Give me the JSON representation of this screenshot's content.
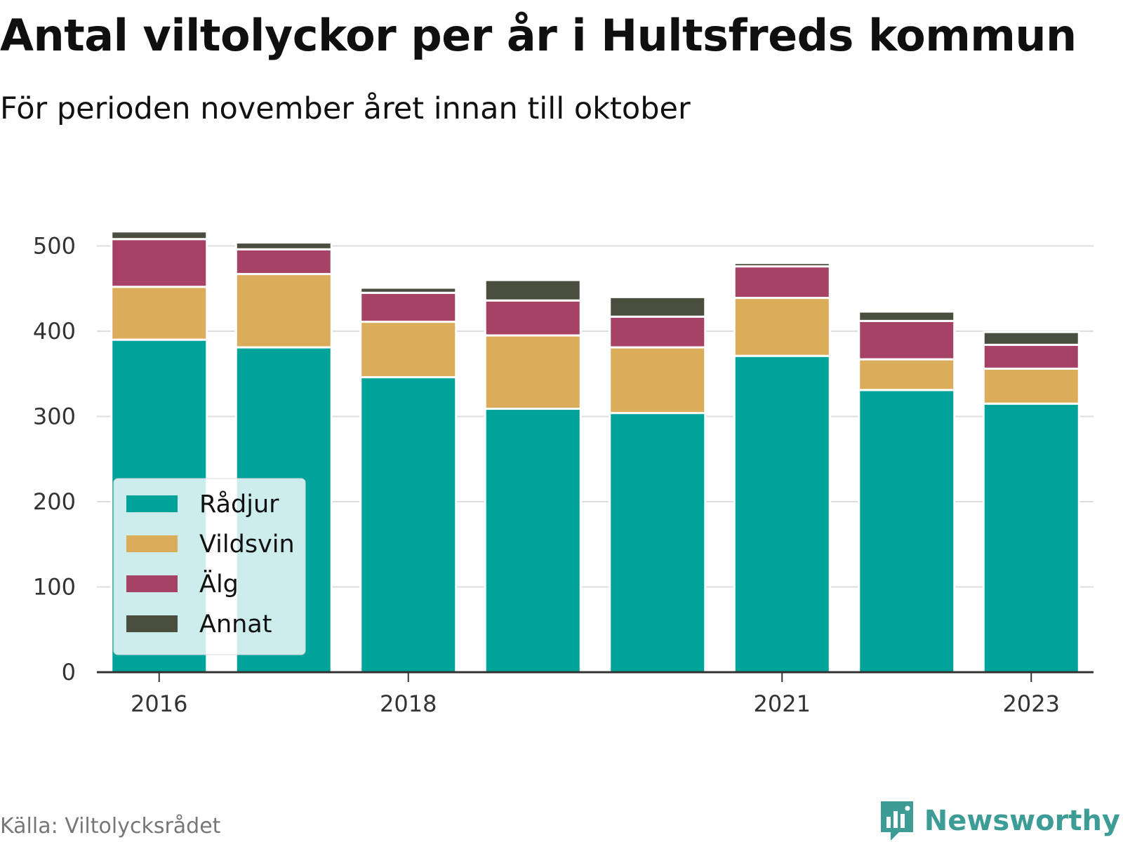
{
  "header": {
    "title": "Antal viltolyckor per år i Hultsfreds kommun",
    "subtitle": "För perioden november året innan till oktober"
  },
  "footer": {
    "source": "Källa: Viltolycksrådet",
    "brand": "Newsworthy",
    "brand_icon": "bar-chart-speech-bubble-icon"
  },
  "chart_data": {
    "type": "bar",
    "stacked": true,
    "categories": [
      "2016",
      "2017",
      "2018",
      "2019",
      "2020",
      "2021",
      "2022",
      "2023"
    ],
    "x_tick_labels": [
      "2016",
      "",
      "2018",
      "",
      "",
      "2021",
      "",
      "2023"
    ],
    "series": [
      {
        "name": "Rådjur",
        "color": "#00a39a",
        "values": [
          390,
          381,
          346,
          309,
          304,
          371,
          331,
          315
        ]
      },
      {
        "name": "Vildsvin",
        "color": "#dbac5a",
        "values": [
          62,
          86,
          65,
          86,
          77,
          68,
          36,
          41
        ]
      },
      {
        "name": "Älg",
        "color": "#a54266",
        "values": [
          56,
          29,
          34,
          41,
          36,
          37,
          45,
          28
        ]
      },
      {
        "name": "Annat",
        "color": "#4a4e3f",
        "values": [
          9,
          8,
          6,
          24,
          23,
          4,
          11,
          15
        ]
      }
    ],
    "ylim": [
      0,
      530
    ],
    "yticks": [
      0,
      100,
      200,
      300,
      400,
      500
    ],
    "grid": true,
    "legend_position": "bottom-left",
    "xlabel": "",
    "ylabel": ""
  }
}
